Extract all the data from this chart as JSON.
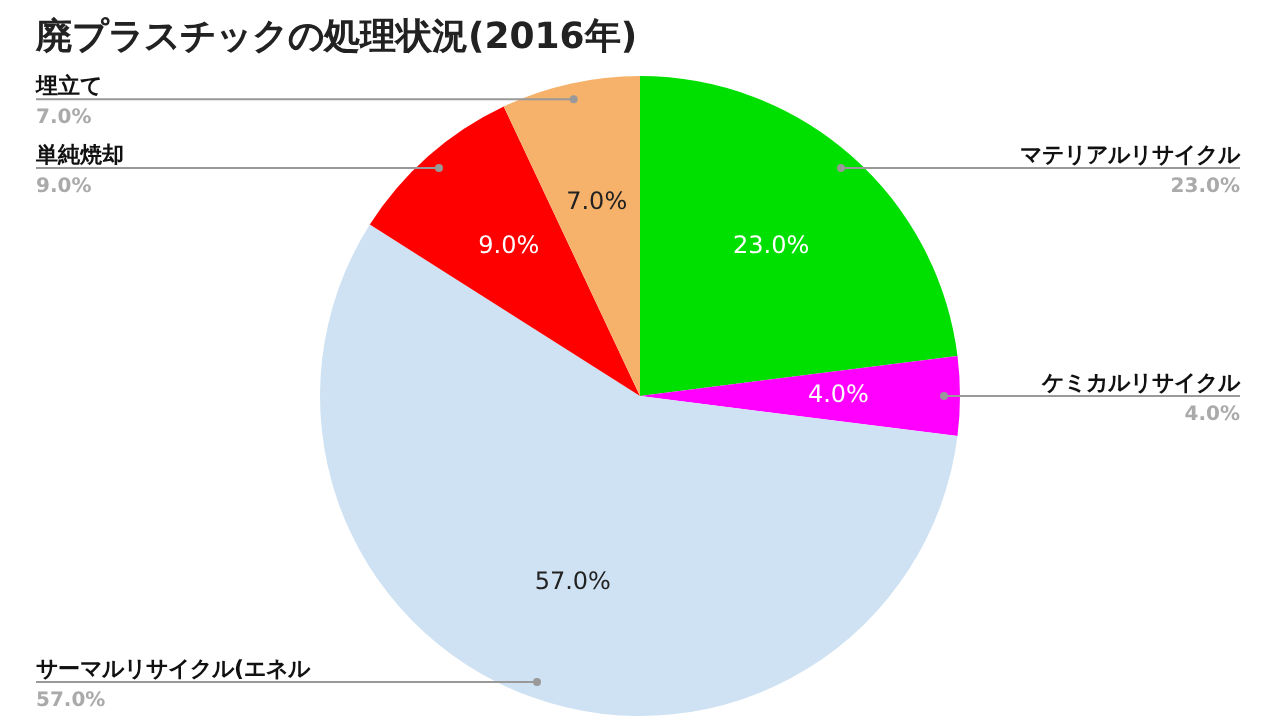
{
  "chart_data": {
    "type": "pie",
    "title": "廃プラスチックの処理状況(2016年)",
    "categories": [
      "マテリアルリサイクル",
      "ケミカルリサイクル",
      "サーマルリサイクル(エネル",
      "単純焼却",
      "埋立て"
    ],
    "values": [
      23,
      4,
      57,
      9,
      7
    ],
    "colors": [
      "#00e000",
      "#ff00ff",
      "#cfe2f3",
      "#ff0000",
      "#f6b26b"
    ],
    "value_labels": [
      "23.0%",
      "4.0%",
      "57.0%",
      "9.0%",
      "7.0%"
    ],
    "legend": false
  }
}
